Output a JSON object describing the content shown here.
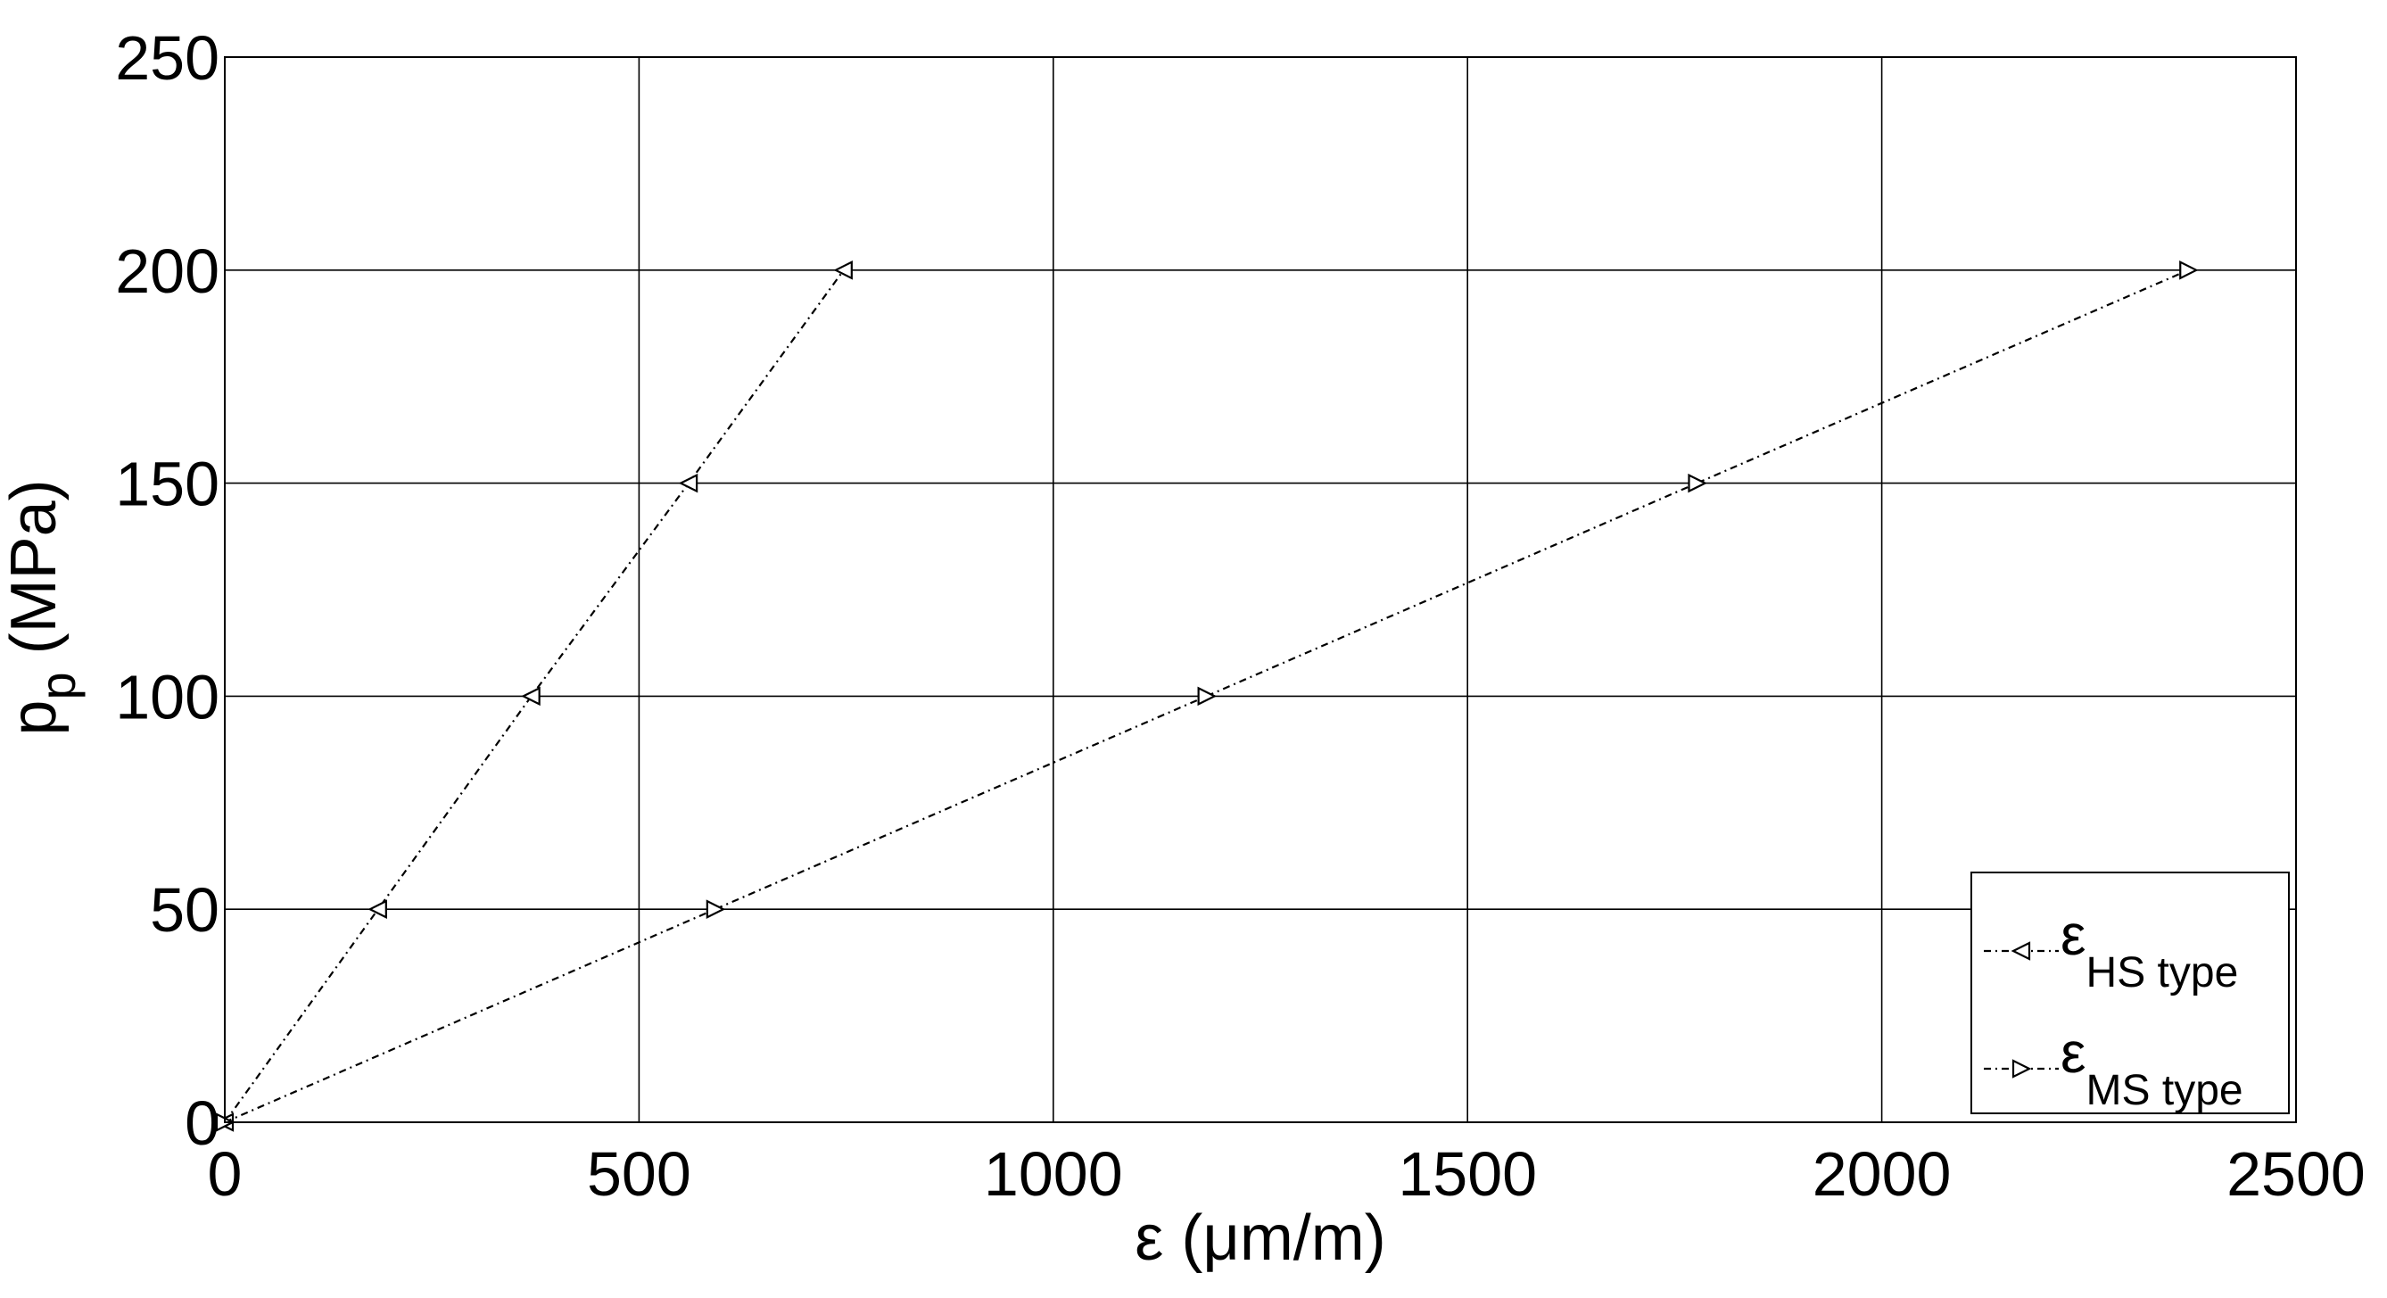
{
  "chart_data": {
    "type": "line",
    "title": "",
    "xlabel": "ε (μm/m)",
    "ylabel": {
      "base": "p",
      "sub": "p",
      "rest": " (MPa)"
    },
    "xlim": [
      0,
      2500
    ],
    "ylim": [
      0,
      250
    ],
    "xticks": [
      0,
      500,
      1000,
      1500,
      2000,
      2500
    ],
    "yticks": [
      0,
      50,
      100,
      150,
      200,
      250
    ],
    "xtick_labels": [
      "0",
      "500",
      "1000",
      "1500",
      "2000",
      "2500"
    ],
    "ytick_labels": [
      "0",
      "50",
      "100",
      "150",
      "200",
      "250"
    ],
    "grid": true,
    "legend_position": "bottom-right",
    "series": [
      {
        "name": "ε HS type",
        "legend_symbol": "ε",
        "legend_sub": "HS type",
        "marker": "triangle-left",
        "dash": "8,5,2,5",
        "color": "#000000",
        "x": [
          0,
          185,
          370,
          560,
          747
        ],
        "y": [
          0,
          50,
          100,
          150,
          200
        ]
      },
      {
        "name": "ε MS type",
        "legend_symbol": "ε",
        "legend_sub": "MS type",
        "marker": "triangle-right",
        "dash": "8,5,2,5",
        "color": "#000000",
        "x": [
          0,
          592,
          1185,
          1777,
          2370
        ],
        "y": [
          0,
          50,
          100,
          150,
          200
        ]
      }
    ]
  }
}
